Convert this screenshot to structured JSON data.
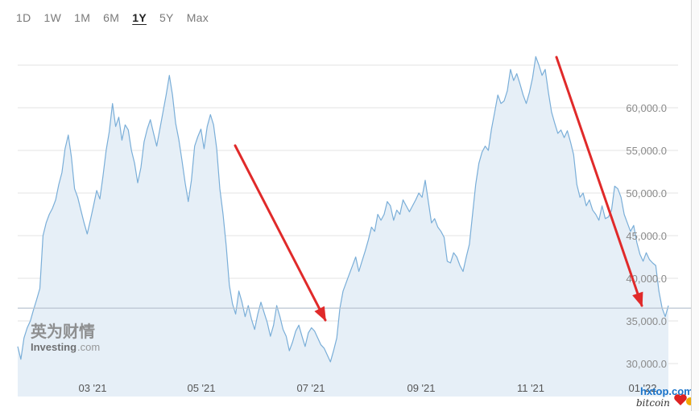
{
  "range_selector": {
    "buttons": [
      "1D",
      "1W",
      "1M",
      "6M",
      "1Y",
      "5Y",
      "Max"
    ],
    "active": "1Y"
  },
  "watermark": {
    "cn": "英为财情",
    "en": "Investing",
    "en_suffix": ".com"
  },
  "corner_watermark": {
    "line1": "hxtop.com",
    "line2": "bitcoin"
  },
  "colors": {
    "line": "#7aaed8",
    "fill": "#e6eff7",
    "arrow": "#e02a2a",
    "grid": "#e3e3e3",
    "current_line": "#b8c4d0"
  },
  "chart_data": {
    "type": "area",
    "title": "",
    "xlabel": "",
    "ylabel": "",
    "x_ticks": [
      "03 '21",
      "05 '21",
      "07 '21",
      "09 '21",
      "11 '21",
      "01 '22"
    ],
    "y_ticks": [
      "30,000.0",
      "35,000.0",
      "40,000.0",
      "45,000.0",
      "50,000.0",
      "55,000.0",
      "60,000.0"
    ],
    "ylim": [
      28000,
      66500
    ],
    "y_axis_side": "right",
    "grid": true,
    "current_price_line": 36500,
    "series": [
      {
        "values": [
          32000,
          30500,
          33000,
          34200,
          35000,
          36300,
          37500,
          38800,
          45000,
          46500,
          47500,
          48200,
          49200,
          51000,
          52400,
          55200,
          56800,
          54200,
          50500,
          49500,
          48000,
          46500,
          45200,
          46800,
          48500,
          50300,
          49300,
          52000,
          55000,
          57200,
          60500,
          57800,
          58900,
          56200,
          58000,
          57400,
          55000,
          53500,
          51200,
          53000,
          56000,
          57500,
          58600,
          57000,
          55500,
          57500,
          59500,
          61500,
          63800,
          61500,
          58200,
          56300,
          53800,
          51200,
          49000,
          51500,
          55500,
          56600,
          57500,
          55200,
          57800,
          59200,
          58000,
          55200,
          50500,
          47500,
          43800,
          39200,
          37000,
          35800,
          38500,
          37200,
          35500,
          36800,
          35200,
          34000,
          35800,
          37200,
          36000,
          34800,
          33200,
          34500,
          36800,
          35500,
          34000,
          33200,
          31500,
          32500,
          33800,
          34500,
          33200,
          32000,
          33600,
          34200,
          33800,
          33000,
          32200,
          31800,
          31000,
          30200,
          31500,
          33000,
          36500,
          38500,
          39500,
          40500,
          41500,
          42500,
          40800,
          42000,
          43200,
          44500,
          46000,
          45500,
          47500,
          46800,
          47500,
          49000,
          48500,
          46800,
          48000,
          47500,
          49200,
          48500,
          47800,
          48500,
          49200,
          50000,
          49500,
          51500,
          49000,
          46500,
          47000,
          46000,
          45500,
          44800,
          42000,
          41800,
          43000,
          42500,
          41500,
          40800,
          42500,
          44000,
          47500,
          51000,
          53500,
          54800,
          55500,
          55000,
          57500,
          59500,
          61500,
          60500,
          60800,
          62000,
          64500,
          63200,
          64000,
          62800,
          61500,
          60500,
          61800,
          63500,
          66000,
          65000,
          63800,
          64500,
          61800,
          59500,
          58200,
          57000,
          57400,
          56500,
          57300,
          56000,
          54500,
          51000,
          49500,
          50000,
          48500,
          49200,
          48000,
          47500,
          46800,
          48500,
          47000,
          47200,
          48000,
          50800,
          50500,
          49500,
          47500,
          46500,
          45500,
          46200,
          44200,
          42800,
          42000,
          43000,
          42200,
          41800,
          41500,
          38500,
          36500,
          35500,
          36800
        ]
      }
    ]
  }
}
